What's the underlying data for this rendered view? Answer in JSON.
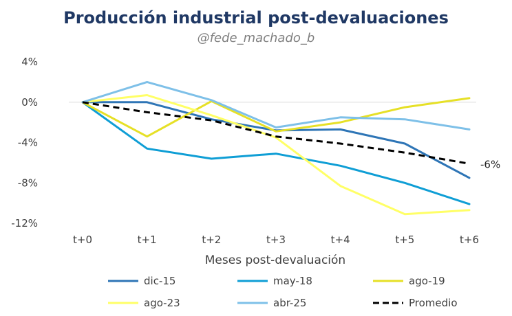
{
  "chart_data": {
    "type": "line",
    "title": "Producción industrial post-devaluaciones",
    "subtitle": "@fede_machado_b",
    "xlabel": "Meses post-devaluación",
    "ylabel": "",
    "categories": [
      "t+0",
      "t+1",
      "t+2",
      "t+3",
      "t+4",
      "t+5",
      "t+6"
    ],
    "ylim": [
      -12,
      4
    ],
    "yticks": [
      4,
      0,
      -4,
      -8,
      -12
    ],
    "ytick_labels": [
      "4%",
      "0%",
      "-4%",
      "-8%",
      "-12%"
    ],
    "grid": false,
    "legend_position": "bottom",
    "series": [
      {
        "name": "dic-15",
        "color": "#2e75b6",
        "dash": "solid",
        "values": [
          0,
          0,
          -1.7,
          -2.8,
          -2.7,
          -4.1,
          -7.5
        ]
      },
      {
        "name": "may-18",
        "color": "#0f9ed5",
        "dash": "solid",
        "values": [
          0,
          -4.6,
          -5.6,
          -5.1,
          -6.3,
          -8.0,
          -10.1
        ]
      },
      {
        "name": "ago-19",
        "color": "#e6e026",
        "dash": "solid",
        "values": [
          0,
          -3.4,
          0.1,
          -2.9,
          -2.0,
          -0.5,
          0.4
        ]
      },
      {
        "name": "ago-23",
        "color": "#ffff66",
        "dash": "solid",
        "values": [
          0,
          0.7,
          -1.3,
          -3.5,
          -8.3,
          -11.1,
          -10.7
        ]
      },
      {
        "name": "abr-25",
        "color": "#7ec0e8",
        "dash": "solid",
        "values": [
          0,
          2.0,
          0.2,
          -2.5,
          -1.5,
          -1.7,
          -2.7
        ]
      },
      {
        "name": "Promedio",
        "color": "#000000",
        "dash": "dashed",
        "values": [
          0,
          -1.0,
          -1.8,
          -3.4,
          -4.1,
          -5.0,
          -6.1
        ]
      }
    ],
    "annotations": [
      {
        "text": "-6%",
        "series": "Promedio",
        "index": 6
      }
    ]
  }
}
